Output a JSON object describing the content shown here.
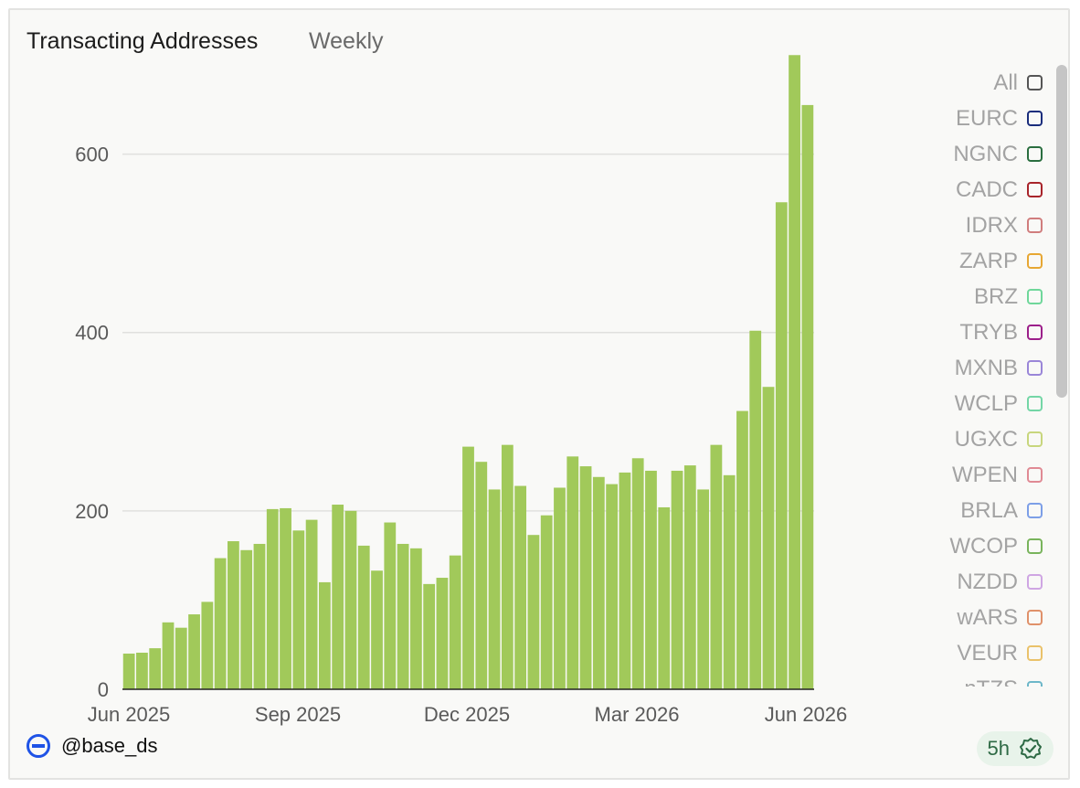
{
  "header": {
    "title": "Transacting Addresses",
    "subtitle": "Weekly"
  },
  "footer": {
    "brand": "@base_ds",
    "freshness": "5h"
  },
  "legend": {
    "items": [
      {
        "label": "All",
        "color": "#555555"
      },
      {
        "label": "EURC",
        "color": "#1a2d7c"
      },
      {
        "label": "NGNC",
        "color": "#2a6e3f"
      },
      {
        "label": "CADC",
        "color": "#a8242a"
      },
      {
        "label": "IDRX",
        "color": "#d07d7d"
      },
      {
        "label": "ZARP",
        "color": "#e7a733"
      },
      {
        "label": "BRZ",
        "color": "#6fd79a"
      },
      {
        "label": "TRYB",
        "color": "#9c1f8a"
      },
      {
        "label": "MXNB",
        "color": "#9a86d8"
      },
      {
        "label": "WCLP",
        "color": "#74d6a6"
      },
      {
        "label": "UGXC",
        "color": "#c8d67d"
      },
      {
        "label": "WPEN",
        "color": "#e08a94"
      },
      {
        "label": "BRLA",
        "color": "#7d9fe7"
      },
      {
        "label": "WCOP",
        "color": "#79b45c"
      },
      {
        "label": "NZDD",
        "color": "#cfa6e3"
      },
      {
        "label": "wARS",
        "color": "#e0916a"
      },
      {
        "label": "VEUR",
        "color": "#eac26a"
      },
      {
        "label": "nTZS",
        "color": "#6db7c9"
      }
    ]
  },
  "chart_data": {
    "type": "bar",
    "bar_color": "#a1c95a",
    "ylim": [
      0,
      700
    ],
    "yticks": [
      0,
      200,
      400,
      600
    ],
    "grid": true,
    "legend_position": "right",
    "x_tick_labels": [
      "Jun 2025",
      "Sep 2025",
      "Dec 2025",
      "Mar 2026",
      "Jun 2026"
    ],
    "series": [
      {
        "values": [
          40,
          41,
          46,
          75,
          69,
          84,
          98,
          147,
          166,
          156,
          163,
          202,
          203,
          178,
          190,
          120,
          207,
          200,
          161,
          133,
          187,
          163,
          158,
          118,
          125,
          150,
          272,
          255,
          224,
          274,
          228,
          173,
          195,
          226,
          261,
          250,
          238,
          230,
          243,
          259,
          245,
          204,
          245,
          251,
          224,
          274,
          240,
          312,
          402,
          339,
          546,
          711,
          655
        ]
      }
    ]
  }
}
